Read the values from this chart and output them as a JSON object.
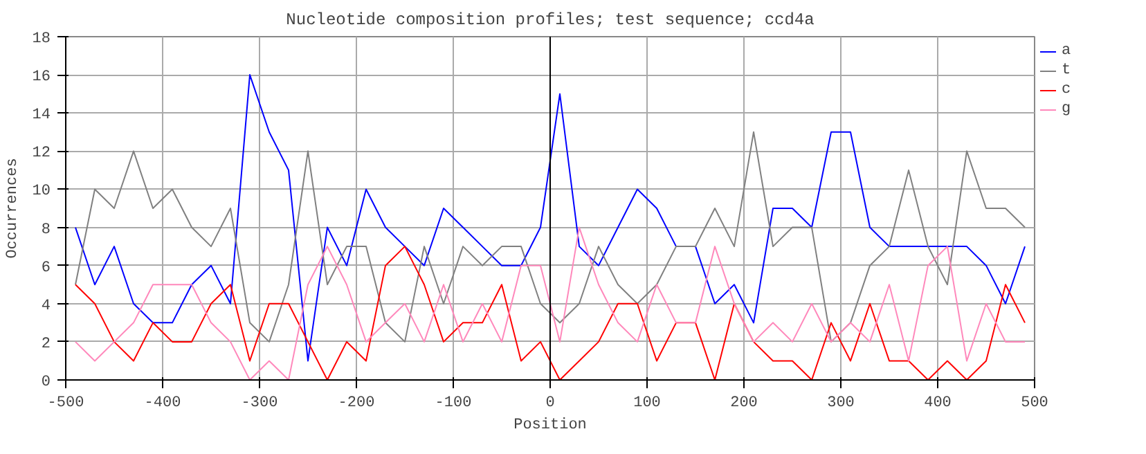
{
  "chart_data": {
    "type": "line",
    "title": "Nucleotide composition profiles; test sequence; ccd4a",
    "xlabel": "Position",
    "ylabel": "Occurrences",
    "x": [
      -490,
      -470,
      -450,
      -430,
      -410,
      -390,
      -370,
      -350,
      -330,
      -310,
      -290,
      -270,
      -250,
      -230,
      -210,
      -190,
      -170,
      -150,
      -130,
      -110,
      -90,
      -70,
      -50,
      -30,
      -10,
      10,
      30,
      50,
      70,
      90,
      110,
      130,
      150,
      170,
      190,
      210,
      230,
      250,
      270,
      290,
      310,
      330,
      350,
      370,
      390,
      410,
      430,
      450,
      470,
      490
    ],
    "series": [
      {
        "name": "a",
        "color": "#0000ff",
        "values": [
          8,
          5,
          7,
          4,
          3,
          3,
          5,
          6,
          4,
          16,
          13,
          11,
          1,
          8,
          6,
          10,
          8,
          7,
          6,
          9,
          8,
          7,
          6,
          6,
          8,
          15,
          7,
          6,
          8,
          10,
          9,
          7,
          7,
          4,
          5,
          3,
          9,
          9,
          8,
          13,
          13,
          8,
          7,
          7,
          7,
          7,
          7,
          6,
          4,
          7
        ]
      },
      {
        "name": "t",
        "color": "#808080",
        "values": [
          5,
          10,
          9,
          12,
          9,
          10,
          8,
          7,
          9,
          3,
          2,
          5,
          12,
          5,
          7,
          7,
          3,
          2,
          7,
          4,
          7,
          6,
          7,
          7,
          4,
          3,
          4,
          7,
          5,
          4,
          5,
          7,
          7,
          9,
          7,
          13,
          7,
          8,
          8,
          2,
          3,
          6,
          7,
          11,
          7,
          5,
          12,
          9,
          9,
          8
        ]
      },
      {
        "name": "c",
        "color": "#ff0000",
        "values": [
          5,
          4,
          2,
          1,
          3,
          2,
          2,
          4,
          5,
          1,
          4,
          4,
          2,
          0,
          2,
          1,
          6,
          7,
          5,
          2,
          3,
          3,
          5,
          1,
          2,
          0,
          1,
          2,
          4,
          4,
          1,
          3,
          3,
          0,
          4,
          2,
          1,
          1,
          0,
          3,
          1,
          4,
          1,
          1,
          0,
          1,
          0,
          1,
          5,
          3
        ]
      },
      {
        "name": "g",
        "color": "#ff88bb",
        "values": [
          2,
          1,
          2,
          3,
          5,
          5,
          5,
          3,
          2,
          0,
          1,
          0,
          5,
          7,
          5,
          2,
          3,
          4,
          2,
          5,
          2,
          4,
          2,
          6,
          6,
          2,
          8,
          5,
          3,
          2,
          5,
          3,
          3,
          7,
          4,
          2,
          3,
          2,
          4,
          2,
          3,
          2,
          5,
          1,
          6,
          7,
          1,
          4,
          2,
          2
        ]
      }
    ],
    "xlim": [
      -500,
      500
    ],
    "xticks": [
      -500,
      -400,
      -300,
      -200,
      -100,
      0,
      100,
      200,
      300,
      400,
      500
    ],
    "ylim": [
      0,
      18
    ],
    "yticks": [
      0,
      2,
      4,
      6,
      8,
      10,
      12,
      14,
      16,
      18
    ],
    "ref_lines": [
      {
        "axis": "x",
        "value": 0,
        "color": "#000000"
      }
    ],
    "grid": true,
    "legend": "top right",
    "marker": "none",
    "line_style": "solid"
  }
}
